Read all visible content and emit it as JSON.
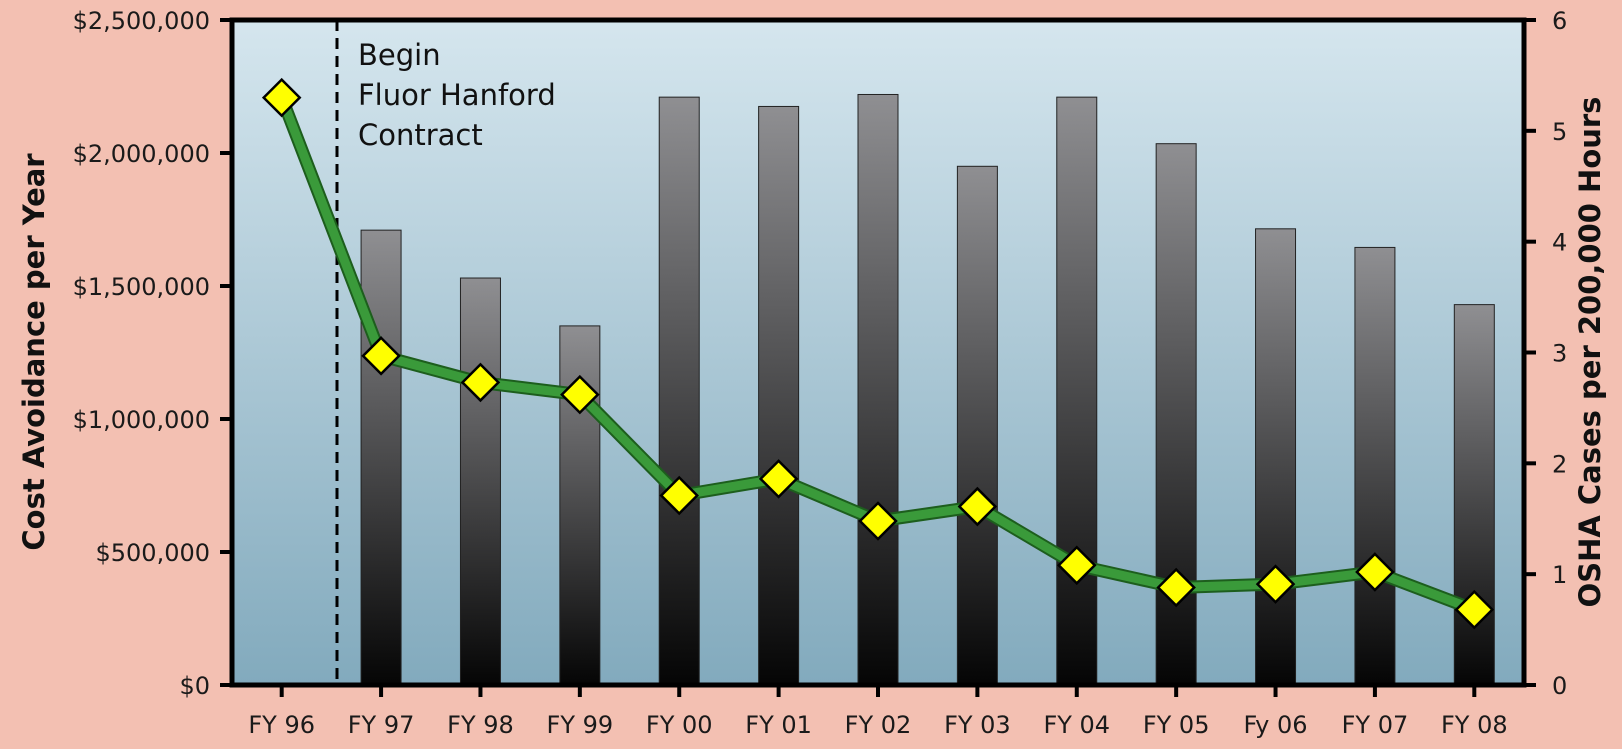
{
  "chart_data": {
    "type": "bar",
    "title": "",
    "categories": [
      "FY 96",
      "FY 97",
      "FY 98",
      "FY 99",
      "FY 00",
      "FY 01",
      "FY 02",
      "FY 03",
      "FY 04",
      "FY 05",
      "Fy 06",
      "FY 07",
      "FY 08"
    ],
    "series": [
      {
        "type": "bar",
        "axis": "left",
        "values": [
          null,
          1710000,
          1530000,
          1350000,
          2210000,
          2175000,
          2220000,
          1950000,
          2210000,
          2035000,
          1715000,
          1645000,
          1430000
        ]
      },
      {
        "type": "line",
        "axis": "right",
        "values": [
          5.3,
          2.97,
          2.73,
          2.62,
          1.71,
          1.86,
          1.48,
          1.61,
          1.08,
          0.88,
          0.91,
          1.02,
          0.68
        ]
      }
    ],
    "ylabel": "Cost Avoidance per Year",
    "y2label": "OSHA Cases per 200,000 Hours",
    "ylim": [
      0,
      2500000
    ],
    "y2lim": [
      0,
      6
    ],
    "yticks": [
      "$0",
      "$500,000",
      "$1,000,000",
      "$1,500,000",
      "$2,000,000",
      "$2,500,000"
    ],
    "yticks_values": [
      0,
      500000,
      1000000,
      1500000,
      2000000,
      2500000
    ],
    "y2ticks": [
      "0",
      "1",
      "2",
      "3",
      "4",
      "5",
      "6"
    ],
    "y2ticks_values": [
      0,
      1,
      2,
      3,
      4,
      5,
      6
    ],
    "annotation": {
      "lines": [
        "Begin",
        "Fluor Hanford",
        "Contract"
      ],
      "after_category": "FY 96"
    },
    "grid": false,
    "legend": "none",
    "colors": {
      "page_background": "#f3c0b2",
      "plot_top": "#d5e6ee",
      "plot_bottom": "#82aabd",
      "bar_top": "#8f8f92",
      "bar_bottom": "#050505",
      "line": "#3a9a3a",
      "marker_fill": "#ffff00",
      "marker_stroke": "#000000",
      "axis": "#000000"
    }
  }
}
